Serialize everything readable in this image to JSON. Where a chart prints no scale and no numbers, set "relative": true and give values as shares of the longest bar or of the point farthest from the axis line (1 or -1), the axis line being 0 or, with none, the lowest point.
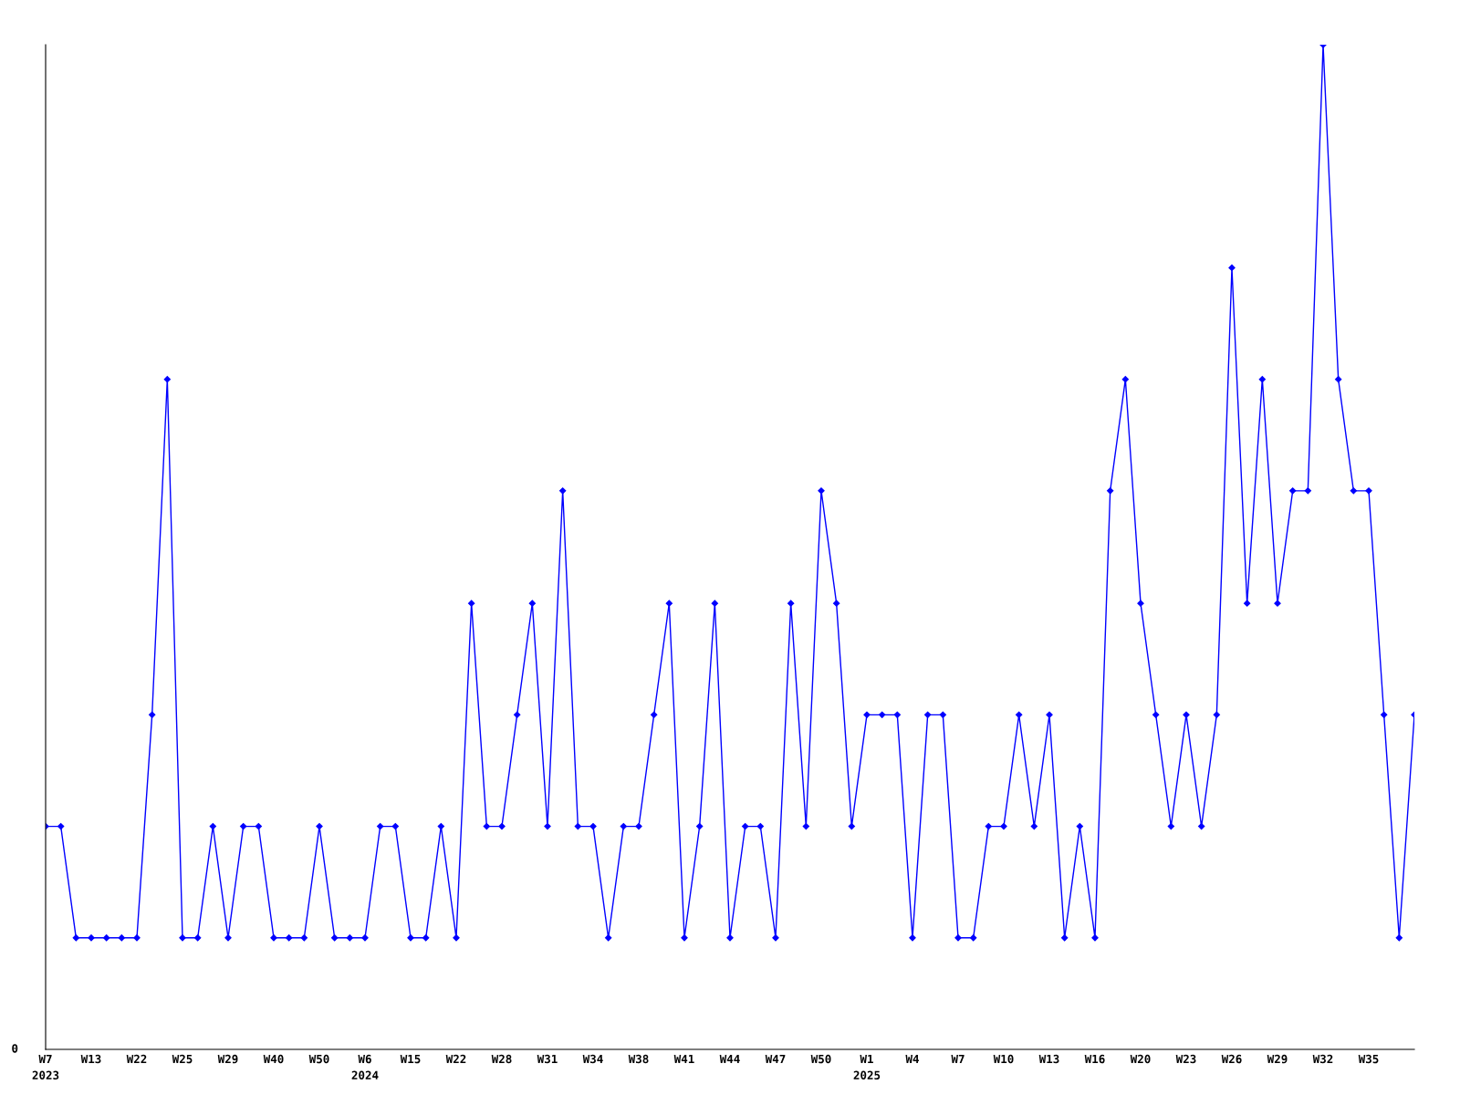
{
  "chart_data": {
    "type": "line",
    "relative": true,
    "categories": [
      "W7\n2023",
      null,
      null,
      "W13",
      null,
      null,
      "W22",
      null,
      null,
      "W25",
      null,
      null,
      "W29",
      null,
      null,
      "W40",
      null,
      null,
      "W50",
      null,
      null,
      "W6\n2024",
      null,
      null,
      "W15",
      null,
      null,
      "W22",
      null,
      null,
      "W28",
      null,
      null,
      "W31",
      null,
      null,
      "W34",
      null,
      null,
      "W38",
      null,
      null,
      "W41",
      null,
      null,
      "W44",
      null,
      null,
      "W47",
      null,
      null,
      "W50",
      null,
      null,
      "W1\n2025",
      null,
      null,
      "W4",
      null,
      null,
      "W7",
      null,
      null,
      "W10",
      null,
      null,
      "W13",
      null,
      null,
      "W16",
      null,
      null,
      "W20",
      null,
      null,
      "W23",
      null,
      null,
      "W26",
      null,
      null,
      "W29",
      null,
      null,
      "W32",
      null,
      null,
      "W35",
      null,
      null,
      null
    ],
    "series": [
      {
        "color": "#0000ff",
        "values": [
          0.222,
          0.222,
          0.111,
          0.111,
          0.111,
          0.111,
          0.111,
          0.333,
          0.667,
          0.111,
          0.111,
          0.222,
          0.111,
          0.222,
          0.222,
          0.111,
          0.111,
          0.111,
          0.222,
          0.111,
          0.111,
          0.111,
          0.222,
          0.222,
          0.111,
          0.111,
          0.222,
          0.111,
          0.444,
          0.222,
          0.222,
          0.333,
          0.444,
          0.222,
          0.556,
          0.222,
          0.222,
          0.111,
          0.222,
          0.222,
          0.333,
          0.444,
          0.111,
          0.222,
          0.444,
          0.111,
          0.222,
          0.222,
          0.111,
          0.444,
          0.222,
          0.556,
          0.444,
          0.222,
          0.333,
          0.333,
          0.333,
          0.111,
          0.333,
          0.333,
          0.111,
          0.111,
          0.222,
          0.222,
          0.333,
          0.222,
          0.333,
          0.111,
          0.222,
          0.111,
          0.556,
          0.667,
          0.444,
          0.333,
          0.222,
          0.333,
          0.222,
          0.333,
          0.778,
          0.444,
          0.667,
          0.444,
          0.556,
          0.556,
          1,
          0.667,
          0.556,
          0.556,
          0.333,
          0.111,
          0.333
        ]
      }
    ],
    "annotations": [
      "0"
    ],
    "marker": "diamond",
    "line_style": "solid",
    "grid": false,
    "legend": false
  }
}
